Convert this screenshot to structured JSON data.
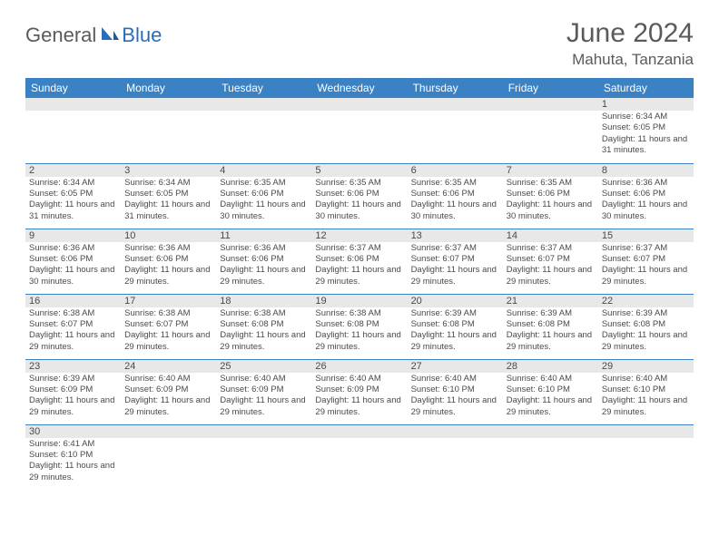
{
  "logo": {
    "text1": "General",
    "text2": "Blue"
  },
  "title": "June 2024",
  "location": "Mahuta, Tanzania",
  "colors": {
    "header_bg": "#3b82c4",
    "header_text": "#ffffff",
    "daynum_bg": "#e8e8e8",
    "text": "#4a4a4a",
    "logo_gray": "#5a5a5a",
    "logo_blue": "#2a6db8"
  },
  "weekdays": [
    "Sunday",
    "Monday",
    "Tuesday",
    "Wednesday",
    "Thursday",
    "Friday",
    "Saturday"
  ],
  "weeks": [
    [
      null,
      null,
      null,
      null,
      null,
      null,
      {
        "n": "1",
        "sr": "Sunrise: 6:34 AM",
        "ss": "Sunset: 6:05 PM",
        "dl": "Daylight: 11 hours and 31 minutes."
      }
    ],
    [
      {
        "n": "2",
        "sr": "Sunrise: 6:34 AM",
        "ss": "Sunset: 6:05 PM",
        "dl": "Daylight: 11 hours and 31 minutes."
      },
      {
        "n": "3",
        "sr": "Sunrise: 6:34 AM",
        "ss": "Sunset: 6:05 PM",
        "dl": "Daylight: 11 hours and 31 minutes."
      },
      {
        "n": "4",
        "sr": "Sunrise: 6:35 AM",
        "ss": "Sunset: 6:06 PM",
        "dl": "Daylight: 11 hours and 30 minutes."
      },
      {
        "n": "5",
        "sr": "Sunrise: 6:35 AM",
        "ss": "Sunset: 6:06 PM",
        "dl": "Daylight: 11 hours and 30 minutes."
      },
      {
        "n": "6",
        "sr": "Sunrise: 6:35 AM",
        "ss": "Sunset: 6:06 PM",
        "dl": "Daylight: 11 hours and 30 minutes."
      },
      {
        "n": "7",
        "sr": "Sunrise: 6:35 AM",
        "ss": "Sunset: 6:06 PM",
        "dl": "Daylight: 11 hours and 30 minutes."
      },
      {
        "n": "8",
        "sr": "Sunrise: 6:36 AM",
        "ss": "Sunset: 6:06 PM",
        "dl": "Daylight: 11 hours and 30 minutes."
      }
    ],
    [
      {
        "n": "9",
        "sr": "Sunrise: 6:36 AM",
        "ss": "Sunset: 6:06 PM",
        "dl": "Daylight: 11 hours and 30 minutes."
      },
      {
        "n": "10",
        "sr": "Sunrise: 6:36 AM",
        "ss": "Sunset: 6:06 PM",
        "dl": "Daylight: 11 hours and 29 minutes."
      },
      {
        "n": "11",
        "sr": "Sunrise: 6:36 AM",
        "ss": "Sunset: 6:06 PM",
        "dl": "Daylight: 11 hours and 29 minutes."
      },
      {
        "n": "12",
        "sr": "Sunrise: 6:37 AM",
        "ss": "Sunset: 6:06 PM",
        "dl": "Daylight: 11 hours and 29 minutes."
      },
      {
        "n": "13",
        "sr": "Sunrise: 6:37 AM",
        "ss": "Sunset: 6:07 PM",
        "dl": "Daylight: 11 hours and 29 minutes."
      },
      {
        "n": "14",
        "sr": "Sunrise: 6:37 AM",
        "ss": "Sunset: 6:07 PM",
        "dl": "Daylight: 11 hours and 29 minutes."
      },
      {
        "n": "15",
        "sr": "Sunrise: 6:37 AM",
        "ss": "Sunset: 6:07 PM",
        "dl": "Daylight: 11 hours and 29 minutes."
      }
    ],
    [
      {
        "n": "16",
        "sr": "Sunrise: 6:38 AM",
        "ss": "Sunset: 6:07 PM",
        "dl": "Daylight: 11 hours and 29 minutes."
      },
      {
        "n": "17",
        "sr": "Sunrise: 6:38 AM",
        "ss": "Sunset: 6:07 PM",
        "dl": "Daylight: 11 hours and 29 minutes."
      },
      {
        "n": "18",
        "sr": "Sunrise: 6:38 AM",
        "ss": "Sunset: 6:08 PM",
        "dl": "Daylight: 11 hours and 29 minutes."
      },
      {
        "n": "19",
        "sr": "Sunrise: 6:38 AM",
        "ss": "Sunset: 6:08 PM",
        "dl": "Daylight: 11 hours and 29 minutes."
      },
      {
        "n": "20",
        "sr": "Sunrise: 6:39 AM",
        "ss": "Sunset: 6:08 PM",
        "dl": "Daylight: 11 hours and 29 minutes."
      },
      {
        "n": "21",
        "sr": "Sunrise: 6:39 AM",
        "ss": "Sunset: 6:08 PM",
        "dl": "Daylight: 11 hours and 29 minutes."
      },
      {
        "n": "22",
        "sr": "Sunrise: 6:39 AM",
        "ss": "Sunset: 6:08 PM",
        "dl": "Daylight: 11 hours and 29 minutes."
      }
    ],
    [
      {
        "n": "23",
        "sr": "Sunrise: 6:39 AM",
        "ss": "Sunset: 6:09 PM",
        "dl": "Daylight: 11 hours and 29 minutes."
      },
      {
        "n": "24",
        "sr": "Sunrise: 6:40 AM",
        "ss": "Sunset: 6:09 PM",
        "dl": "Daylight: 11 hours and 29 minutes."
      },
      {
        "n": "25",
        "sr": "Sunrise: 6:40 AM",
        "ss": "Sunset: 6:09 PM",
        "dl": "Daylight: 11 hours and 29 minutes."
      },
      {
        "n": "26",
        "sr": "Sunrise: 6:40 AM",
        "ss": "Sunset: 6:09 PM",
        "dl": "Daylight: 11 hours and 29 minutes."
      },
      {
        "n": "27",
        "sr": "Sunrise: 6:40 AM",
        "ss": "Sunset: 6:10 PM",
        "dl": "Daylight: 11 hours and 29 minutes."
      },
      {
        "n": "28",
        "sr": "Sunrise: 6:40 AM",
        "ss": "Sunset: 6:10 PM",
        "dl": "Daylight: 11 hours and 29 minutes."
      },
      {
        "n": "29",
        "sr": "Sunrise: 6:40 AM",
        "ss": "Sunset: 6:10 PM",
        "dl": "Daylight: 11 hours and 29 minutes."
      }
    ],
    [
      {
        "n": "30",
        "sr": "Sunrise: 6:41 AM",
        "ss": "Sunset: 6:10 PM",
        "dl": "Daylight: 11 hours and 29 minutes."
      },
      null,
      null,
      null,
      null,
      null,
      null
    ]
  ]
}
